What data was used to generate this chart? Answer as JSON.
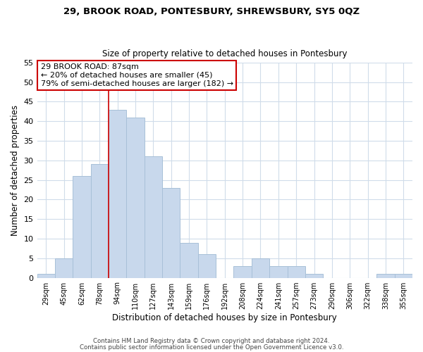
{
  "title": "29, BROOK ROAD, PONTESBURY, SHREWSBURY, SY5 0QZ",
  "subtitle": "Size of property relative to detached houses in Pontesbury",
  "xlabel": "Distribution of detached houses by size in Pontesbury",
  "ylabel": "Number of detached properties",
  "bar_labels": [
    "29sqm",
    "45sqm",
    "62sqm",
    "78sqm",
    "94sqm",
    "110sqm",
    "127sqm",
    "143sqm",
    "159sqm",
    "176sqm",
    "192sqm",
    "208sqm",
    "224sqm",
    "241sqm",
    "257sqm",
    "273sqm",
    "290sqm",
    "306sqm",
    "322sqm",
    "338sqm",
    "355sqm"
  ],
  "bar_values": [
    1,
    5,
    26,
    29,
    43,
    41,
    31,
    23,
    9,
    6,
    0,
    3,
    5,
    3,
    3,
    1,
    0,
    0,
    0,
    1,
    1
  ],
  "bar_color": "#c8d8ec",
  "bar_edge_color": "#a8c0d8",
  "ylim": [
    0,
    55
  ],
  "yticks": [
    0,
    5,
    10,
    15,
    20,
    25,
    30,
    35,
    40,
    45,
    50,
    55
  ],
  "vline_x": 3.5,
  "vline_color": "#cc0000",
  "annotation_title": "29 BROOK ROAD: 87sqm",
  "annotation_line1": "← 20% of detached houses are smaller (45)",
  "annotation_line2": "79% of semi-detached houses are larger (182) →",
  "annotation_box_color": "#ffffff",
  "annotation_border_color": "#cc0000",
  "footer1": "Contains HM Land Registry data © Crown copyright and database right 2024.",
  "footer2": "Contains public sector information licensed under the Open Government Licence v3.0.",
  "background_color": "#ffffff",
  "grid_color": "#d0dcea"
}
